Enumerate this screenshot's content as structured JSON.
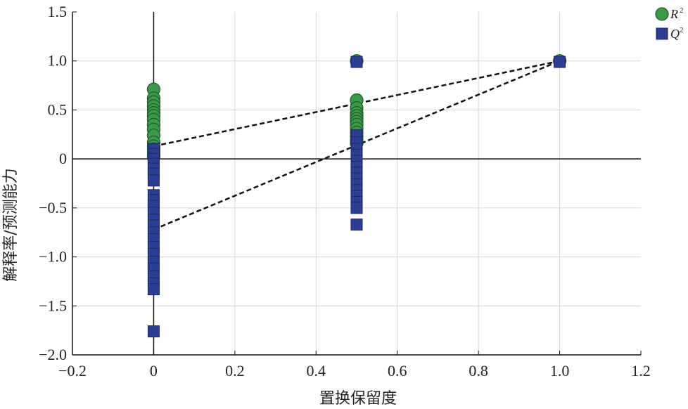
{
  "chart_data": {
    "type": "scatter",
    "xlabel": "置换保留度",
    "ylabel": "解释率/预测能力",
    "xlim": [
      -0.2,
      1.2
    ],
    "ylim": [
      -2.0,
      1.5
    ],
    "xticks": [
      -0.2,
      0,
      0.2,
      0.4,
      0.6,
      0.8,
      1.0,
      1.2
    ],
    "xtick_labels": [
      "−0.2",
      "0",
      "0.2",
      "0.4",
      "0.6",
      "0.8",
      "1.0",
      "1.2"
    ],
    "yticks": [
      -2.0,
      -1.5,
      -1.0,
      -0.5,
      0,
      0.5,
      1.0,
      1.5
    ],
    "ytick_labels": [
      "−2.0",
      "−1.5",
      "−1.0",
      "−0.5",
      "0",
      "0.5",
      "1.0",
      "1.5"
    ],
    "grid": true,
    "legend_position": "top-right outside",
    "series": [
      {
        "name": "R",
        "name_sup": "2",
        "marker": "circle",
        "color": "#3a9a48",
        "edge": "#1f5a2a",
        "points": [
          [
            0,
            0.71
          ],
          [
            0,
            0.62
          ],
          [
            0,
            0.58
          ],
          [
            0,
            0.54
          ],
          [
            0,
            0.5
          ],
          [
            0,
            0.47
          ],
          [
            0,
            0.44
          ],
          [
            0,
            0.4
          ],
          [
            0,
            0.35
          ],
          [
            0,
            0.3
          ],
          [
            0,
            0.24
          ],
          [
            0,
            0.17
          ],
          [
            0,
            0.13
          ],
          [
            0,
            0.1
          ],
          [
            0,
            0.07
          ],
          [
            0,
            0.04
          ],
          [
            0,
            0.02
          ],
          [
            0.5,
            1.0
          ],
          [
            0.5,
            0.6
          ],
          [
            0.5,
            0.52
          ],
          [
            0.5,
            0.47
          ],
          [
            0.5,
            0.44
          ],
          [
            0.5,
            0.41
          ],
          [
            0.5,
            0.38
          ],
          [
            0.5,
            0.35
          ],
          [
            0.5,
            0.31
          ],
          [
            0.5,
            0.27
          ],
          [
            0.5,
            0.23
          ],
          [
            0.5,
            0.19
          ],
          [
            0.5,
            0.16
          ],
          [
            1.0,
            1.0
          ]
        ]
      },
      {
        "name": "Q",
        "name_sup": "2",
        "marker": "square",
        "color": "#2c3d94",
        "edge": "#1b275f",
        "points": [
          [
            0,
            0.1
          ],
          [
            0,
            0.05
          ],
          [
            0,
            0.0
          ],
          [
            0,
            -0.05
          ],
          [
            0,
            -0.1
          ],
          [
            0,
            -0.15
          ],
          [
            0,
            -0.22
          ],
          [
            0,
            -0.37
          ],
          [
            0,
            -0.42
          ],
          [
            0,
            -0.48
          ],
          [
            0,
            -0.55
          ],
          [
            0,
            -0.62
          ],
          [
            0,
            -0.68
          ],
          [
            0,
            -0.75
          ],
          [
            0,
            -0.82
          ],
          [
            0,
            -0.9
          ],
          [
            0,
            -0.97
          ],
          [
            0,
            -1.05
          ],
          [
            0,
            -1.12
          ],
          [
            0,
            -1.2
          ],
          [
            0,
            -1.27
          ],
          [
            0,
            -1.33
          ],
          [
            0,
            -1.76
          ],
          [
            0.5,
            0.99
          ],
          [
            0.5,
            0.24
          ],
          [
            0.5,
            0.17
          ],
          [
            0.5,
            0.1
          ],
          [
            0.5,
            0.04
          ],
          [
            0.5,
            -0.02
          ],
          [
            0.5,
            -0.08
          ],
          [
            0.5,
            -0.14
          ],
          [
            0.5,
            -0.2
          ],
          [
            0.5,
            -0.26
          ],
          [
            0.5,
            -0.32
          ],
          [
            0.5,
            -0.38
          ],
          [
            0.5,
            -0.44
          ],
          [
            0.5,
            -0.5
          ],
          [
            0.5,
            -0.67
          ],
          [
            1.0,
            0.99
          ]
        ]
      }
    ],
    "trend_lines": [
      {
        "series": "R2",
        "style": "dashed",
        "from": [
          0,
          0.13
        ],
        "to": [
          1.0,
          1.0
        ]
      },
      {
        "series": "Q2",
        "style": "dashed",
        "from": [
          0,
          -0.72
        ],
        "to": [
          1.0,
          1.0
        ]
      }
    ]
  }
}
